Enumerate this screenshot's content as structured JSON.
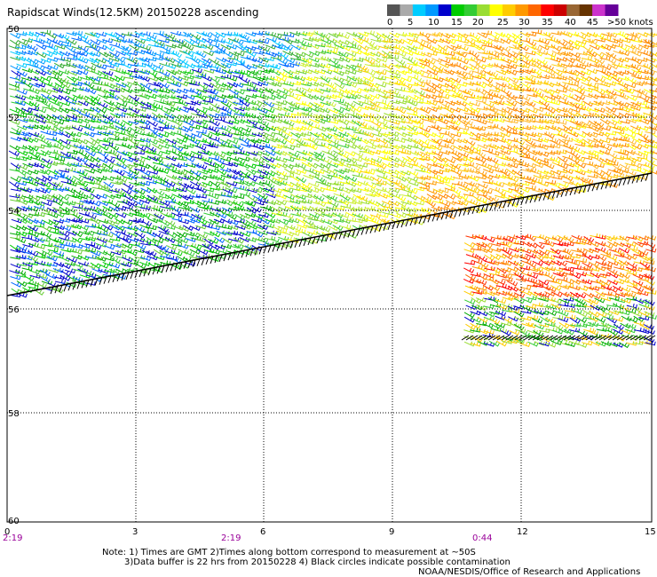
{
  "title": "Rapidscat Winds(12.5KM) 20150228 ascending",
  "legend": {
    "labels": [
      "0",
      "5",
      "10",
      "15",
      "20",
      "25",
      "30",
      "35",
      "40",
      "45",
      ">50 knots"
    ],
    "colors": [
      "#555555",
      "#aaaaaa",
      "#00ccff",
      "#0099ff",
      "#0000cc",
      "#00cc00",
      "#33cc33",
      "#99dd33",
      "#ffff00",
      "#ffcc00",
      "#ff9900",
      "#ff6600",
      "#ff0000",
      "#cc0000",
      "#996633",
      "#663300",
      "#cc33cc",
      "#660099"
    ]
  },
  "axes": {
    "y_labels": [
      "50",
      "52",
      "54",
      "56",
      "58",
      "60"
    ],
    "x_labels": [
      "0",
      "3",
      "6",
      "9",
      "12",
      "15"
    ],
    "time_labels": [
      "2:19",
      "2:19",
      "0:44"
    ]
  },
  "notes": {
    "line1": "Note: 1) Times are GMT 2)Times along bottom correspond to measurement at ~50S",
    "line2": "3)Data buffer is 22 hrs from 20150228 4) Black circles indicate possible contamination",
    "credit": "NOAA/NESDIS/Office of Research and Applications"
  },
  "map_data": {
    "lat_range": [
      -50,
      -60
    ],
    "lon_range": [
      0,
      15
    ],
    "grid": true,
    "wind_speed_units": "knots"
  }
}
